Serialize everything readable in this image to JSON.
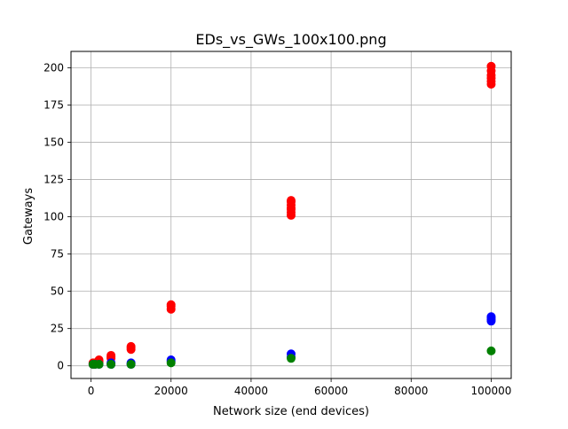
{
  "chart_data": {
    "type": "scatter",
    "title": "EDs_vs_GWs_100x100.png",
    "xlabel": "Network size (end devices)",
    "ylabel": "Gateways",
    "xlim": [
      -5000,
      105000
    ],
    "ylim": [
      -8.5,
      211
    ],
    "xticks": [
      0,
      20000,
      40000,
      60000,
      80000,
      100000
    ],
    "yticks": [
      0,
      25,
      50,
      75,
      100,
      125,
      150,
      175,
      200
    ],
    "grid": true,
    "series": [
      {
        "color": "#ff0000",
        "x": [
          500,
          500,
          1000,
          1000,
          2000,
          2000,
          2000,
          5000,
          5000,
          5000,
          10000,
          10000,
          10000,
          20000,
          20000,
          20000,
          50000,
          50000,
          50000,
          50000,
          50000,
          50000,
          50000,
          100000,
          100000,
          100000,
          100000,
          100000,
          100000
        ],
        "y": [
          1,
          2,
          1,
          2,
          2,
          3,
          4,
          5,
          6,
          7,
          11,
          12,
          13,
          38,
          40,
          41,
          101,
          103,
          105,
          106,
          108,
          110,
          111,
          189,
          191,
          193,
          195,
          198,
          201
        ]
      },
      {
        "color": "#0000ff",
        "x": [
          500,
          1000,
          2000,
          5000,
          5000,
          10000,
          10000,
          20000,
          20000,
          50000,
          50000,
          100000,
          100000,
          100000,
          100000
        ],
        "y": [
          1,
          1,
          1,
          1,
          2,
          1,
          2,
          3,
          4,
          6,
          8,
          30,
          31,
          32,
          33
        ]
      },
      {
        "color": "#008000",
        "x": [
          500,
          1000,
          2000,
          5000,
          10000,
          20000,
          50000,
          100000
        ],
        "y": [
          1,
          1,
          1,
          1,
          1,
          2,
          5,
          10
        ]
      }
    ]
  }
}
